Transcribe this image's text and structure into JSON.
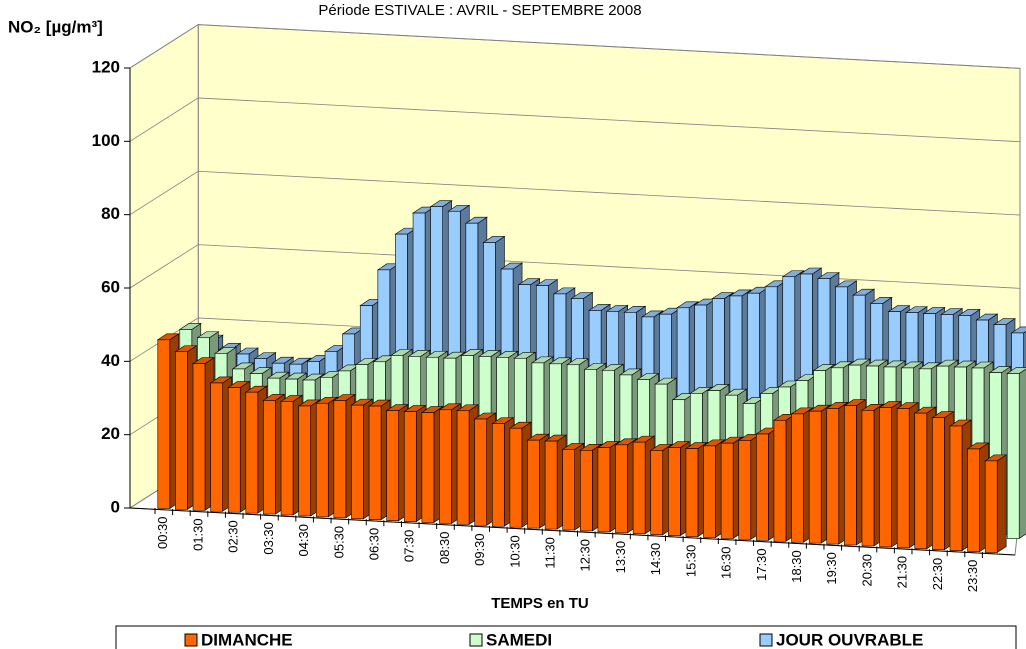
{
  "chart_data": {
    "type": "bar3d",
    "title": "Période ESTIVALE : AVRIL - SEPTEMBRE 2008",
    "y_label": "NO₂  [µg/m³]",
    "x_label": "TEMPS en TU",
    "categories": [
      "00:30",
      null,
      "01:30",
      null,
      "02:30",
      null,
      "03:30",
      null,
      "04:30",
      null,
      "05:30",
      null,
      "06:30",
      null,
      "07:30",
      null,
      "08:30",
      null,
      "09:30",
      null,
      "10:30",
      null,
      "11:30",
      null,
      "12:30",
      null,
      "13:30",
      null,
      "14:30",
      null,
      "15:30",
      null,
      "16:30",
      null,
      "17:30",
      null,
      "18:30",
      null,
      "19:30",
      null,
      "20:30",
      null,
      "21:30",
      null,
      "22:30",
      null,
      "23:30",
      null
    ],
    "series": [
      {
        "name": "DIMANCHE",
        "color": "#ff6600",
        "values": [
          46,
          43,
          40,
          35,
          34,
          33,
          31,
          31,
          30,
          31,
          32,
          31,
          31,
          30,
          30,
          30,
          31,
          31,
          29,
          28,
          27,
          24,
          24,
          22,
          22,
          23,
          24,
          25,
          23,
          24,
          24,
          25,
          26,
          27,
          29,
          33,
          35,
          36,
          37,
          38,
          37,
          38,
          38,
          37,
          36,
          34,
          28,
          25
        ]
      },
      {
        "name": "SAMEDI",
        "color": "#ccffcc",
        "values": [
          45,
          43,
          39,
          35,
          34,
          33,
          33,
          33,
          34,
          36,
          38,
          39,
          41,
          41,
          41,
          41,
          42,
          42,
          42,
          42,
          41,
          41,
          41,
          40,
          40,
          39,
          38,
          37,
          33,
          35,
          36,
          35,
          33,
          36,
          38,
          40,
          43,
          44,
          45,
          45,
          45,
          45,
          45,
          46,
          46,
          46,
          45,
          45
        ]
      },
      {
        "name": "JOUR OUVRABLE",
        "color": "#99ccff",
        "values": [
          38,
          36,
          35,
          34,
          33,
          33,
          34,
          37,
          42,
          50,
          60,
          70,
          76,
          78,
          77,
          74,
          69,
          62,
          58,
          58,
          56,
          55,
          52,
          52,
          52,
          51,
          52,
          54,
          55,
          57,
          58,
          59,
          61,
          64,
          65,
          64,
          62,
          60,
          58,
          56,
          56,
          56,
          56,
          56,
          55,
          54,
          52,
          50
        ]
      }
    ],
    "ylim": [
      0,
      120
    ],
    "yticks": [
      0,
      20,
      40,
      60,
      80,
      100,
      120
    ],
    "grid": true
  }
}
